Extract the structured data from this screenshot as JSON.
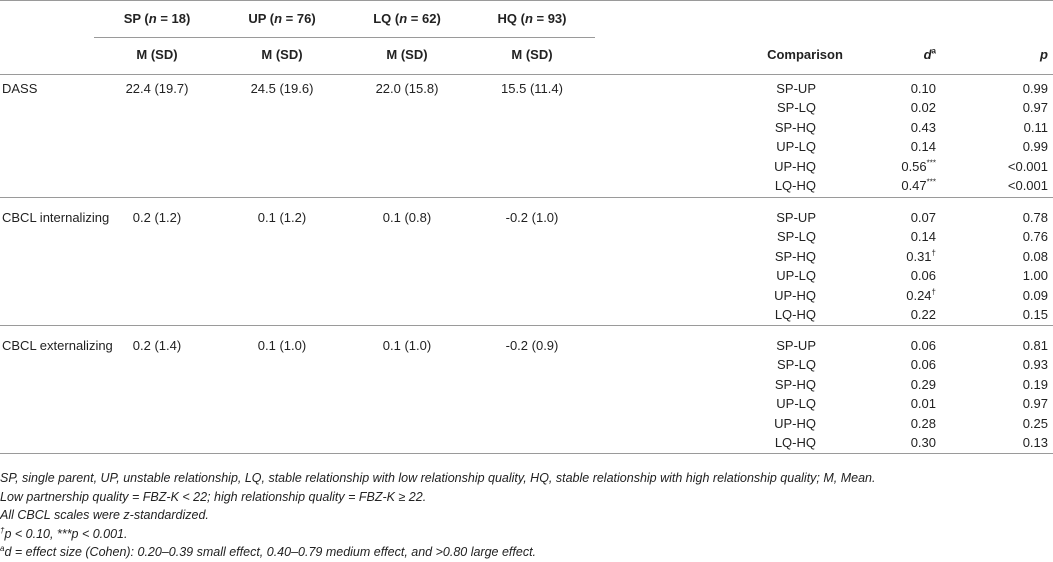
{
  "header": {
    "groups": [
      {
        "abbr": "SP",
        "n_label": "n",
        "n_value": "= 18"
      },
      {
        "abbr": "UP",
        "n_label": "n",
        "n_value": "= 76"
      },
      {
        "abbr": "LQ",
        "n_label": "n",
        "n_value": "= 62"
      },
      {
        "abbr": "HQ",
        "n_label": "n",
        "n_value": "= 93"
      }
    ],
    "stat_label": "M (SD)",
    "comparison": "Comparison",
    "d_label": "d",
    "d_sup": "a",
    "p_label": "p"
  },
  "rows": [
    {
      "measure": "DASS",
      "values": [
        "22.4 (19.7)",
        "24.5 (19.6)",
        "22.0 (15.8)",
        "15.5 (11.4)"
      ],
      "comparisons": [
        {
          "pair": "SP-UP",
          "d": "0.10",
          "mark": "",
          "p": "0.99"
        },
        {
          "pair": "SP-LQ",
          "d": "0.02",
          "mark": "",
          "p": "0.97"
        },
        {
          "pair": "SP-HQ",
          "d": "0.43",
          "mark": "",
          "p": "0.11"
        },
        {
          "pair": "UP-LQ",
          "d": "0.14",
          "mark": "",
          "p": "0.99"
        },
        {
          "pair": "UP-HQ",
          "d": "0.56",
          "mark": "***",
          "p": "<0.001"
        },
        {
          "pair": "LQ-HQ",
          "d": "0.47",
          "mark": "***",
          "p": "<0.001"
        }
      ]
    },
    {
      "measure": "CBCL internalizing",
      "values": [
        "0.2 (1.2)",
        "0.1 (1.2)",
        "0.1 (0.8)",
        "-0.2 (1.0)"
      ],
      "comparisons": [
        {
          "pair": "SP-UP",
          "d": "0.07",
          "mark": "",
          "p": "0.78"
        },
        {
          "pair": "SP-LQ",
          "d": "0.14",
          "mark": "",
          "p": "0.76"
        },
        {
          "pair": "SP-HQ",
          "d": "0.31",
          "mark": "†",
          "p": "0.08"
        },
        {
          "pair": "UP-LQ",
          "d": "0.06",
          "mark": "",
          "p": "1.00"
        },
        {
          "pair": "UP-HQ",
          "d": "0.24",
          "mark": "†",
          "p": "0.09"
        },
        {
          "pair": "LQ-HQ",
          "d": "0.22",
          "mark": "",
          "p": "0.15"
        }
      ]
    },
    {
      "measure": "CBCL externalizing",
      "values": [
        "0.2 (1.4)",
        "0.1 (1.0)",
        "0.1 (1.0)",
        "-0.2 (0.9)"
      ],
      "comparisons": [
        {
          "pair": "SP-UP",
          "d": "0.06",
          "mark": "",
          "p": "0.81"
        },
        {
          "pair": "SP-LQ",
          "d": "0.06",
          "mark": "",
          "p": "0.93"
        },
        {
          "pair": "SP-HQ",
          "d": "0.29",
          "mark": "",
          "p": "0.19"
        },
        {
          "pair": "UP-LQ",
          "d": "0.01",
          "mark": "",
          "p": "0.97"
        },
        {
          "pair": "UP-HQ",
          "d": "0.28",
          "mark": "",
          "p": "0.25"
        },
        {
          "pair": "LQ-HQ",
          "d": "0.30",
          "mark": "",
          "p": "0.13"
        }
      ]
    }
  ],
  "notes": [
    {
      "sup": "",
      "text": "SP, single parent, UP, unstable relationship, LQ, stable relationship with low relationship quality, HQ, stable relationship with high relationship quality; M, Mean."
    },
    {
      "sup": "",
      "text": "Low partnership quality = FBZ-K < 22; high relationship quality = FBZ-K ≥ 22."
    },
    {
      "sup": "",
      "text": "All CBCL scales were z-standardized."
    },
    {
      "sup": "†",
      "text": "p < 0.10, ***p < 0.001."
    },
    {
      "sup": "a",
      "text": "d = effect size (Cohen): 0.20–0.39 small effect, 0.40–0.79 medium effect, and >0.80 large effect."
    }
  ]
}
